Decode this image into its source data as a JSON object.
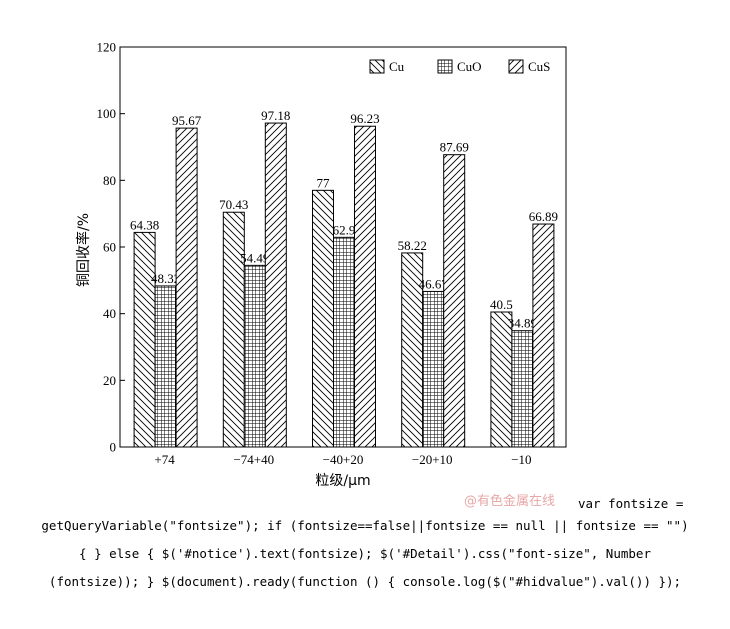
{
  "chart_data": {
    "type": "bar",
    "title": "",
    "xlabel": "粒级/μm",
    "ylabel": "铜回收率/%",
    "ylim": [
      0,
      120
    ],
    "yticks": [
      0,
      20,
      40,
      60,
      80,
      100,
      120
    ],
    "categories": [
      "+74",
      "−74+40",
      "−40+20",
      "−20+10",
      "−10"
    ],
    "legend_position": "top-right",
    "grid": false,
    "series": [
      {
        "name": "Cu",
        "values": [
          64.38,
          70.43,
          77,
          58.22,
          40.5
        ],
        "labels": [
          "64.38",
          "70.43",
          "77",
          "58.22",
          "40.5"
        ],
        "pattern": "back-diagonal"
      },
      {
        "name": "CuO",
        "values": [
          48.32,
          54.49,
          62.9,
          46.67,
          34.89
        ],
        "labels": [
          "48.32",
          "54.49",
          "62.9",
          "46.67",
          "34.89"
        ],
        "pattern": "crosshatch"
      },
      {
        "name": "CuS",
        "values": [
          95.67,
          97.18,
          96.23,
          87.69,
          66.89
        ],
        "labels": [
          "95.67",
          "97.18",
          "96.23",
          "87.69",
          "66.89"
        ],
        "pattern": "forward-diagonal"
      }
    ]
  },
  "watermark": "@有色金属在线",
  "code_lines": [
    "var fontsize =",
    "getQueryVariable(\"fontsize\"); if (fontsize==false||fontsize == null || fontsize == \"\")",
    "{ } else { $('#notice').text(fontsize); $('#Detail').css(\"font-size\", Number",
    "(fontsize)); } $(document).ready(function () { console.log($(\"#hidvalue\").val()) });"
  ]
}
